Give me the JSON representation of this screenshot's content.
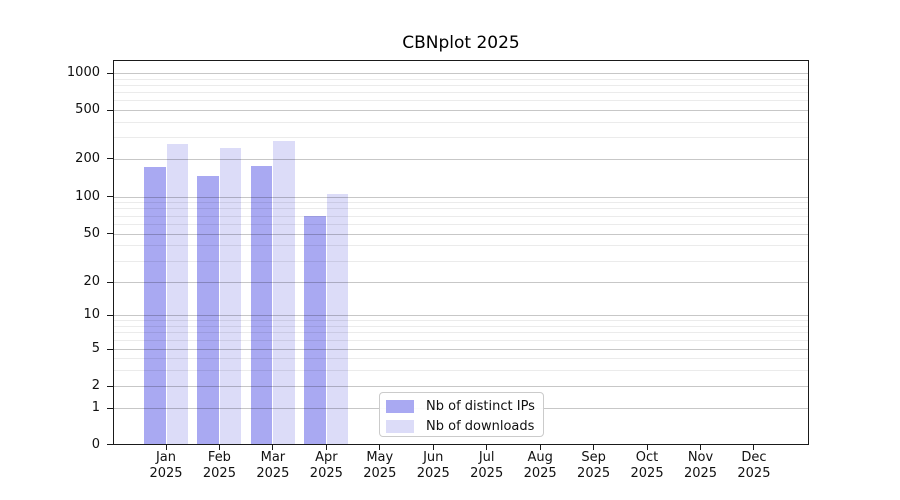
{
  "title": "CBNplot 2025",
  "colors": {
    "distinct_ips": "#a9a9f2",
    "downloads": "#dcdcf8",
    "grid_major": "rgba(0,0,0,0.22)",
    "grid_minor": "rgba(0,0,0,0.08)",
    "spine": "#1a1a1a"
  },
  "y_axis": {
    "ticks": [
      {
        "value": 1000,
        "label": "1000"
      },
      {
        "value": 500,
        "label": "500"
      },
      {
        "value": 200,
        "label": "200"
      },
      {
        "value": 100,
        "label": "100"
      },
      {
        "value": 50,
        "label": "50"
      },
      {
        "value": 20,
        "label": "20"
      },
      {
        "value": 10,
        "label": "10"
      },
      {
        "value": 5,
        "label": "5"
      },
      {
        "value": 2,
        "label": "2"
      },
      {
        "value": 1,
        "label": "1"
      },
      {
        "value": 0,
        "label": "0"
      }
    ]
  },
  "x_axis": {
    "months": [
      "Jan",
      "Feb",
      "Mar",
      "Apr",
      "May",
      "Jun",
      "Jul",
      "Aug",
      "Sep",
      "Oct",
      "Nov",
      "Dec"
    ],
    "year": "2025"
  },
  "legend": {
    "items": [
      {
        "label": "Nb of distinct IPs",
        "color_key": "distinct_ips"
      },
      {
        "label": "Nb of downloads",
        "color_key": "downloads"
      }
    ]
  },
  "chart_data": {
    "type": "bar",
    "title": "CBNplot 2025",
    "categories": [
      "Jan 2025",
      "Feb 2025",
      "Mar 2025",
      "Apr 2025",
      "May 2025",
      "Jun 2025",
      "Jul 2025",
      "Aug 2025",
      "Sep 2025",
      "Oct 2025",
      "Nov 2025",
      "Dec 2025"
    ],
    "series": [
      {
        "name": "Nb of distinct IPs",
        "color": "#a9a9f2",
        "values": [
          171,
          145,
          174,
          69,
          0,
          0,
          0,
          0,
          0,
          0,
          0,
          0
        ]
      },
      {
        "name": "Nb of downloads",
        "color": "#dcdcf8",
        "values": [
          262,
          243,
          280,
          104,
          0,
          0,
          0,
          0,
          0,
          0,
          0,
          0
        ]
      }
    ],
    "y_scale": "log-like (compressed linear region near 0)",
    "y_ticks": [
      0,
      1,
      2,
      5,
      10,
      20,
      50,
      100,
      200,
      500,
      1000
    ],
    "ylim": [
      0,
      1200
    ],
    "xlabel": "",
    "ylabel": "",
    "grid": true,
    "legend_position": "inside lower-center"
  }
}
